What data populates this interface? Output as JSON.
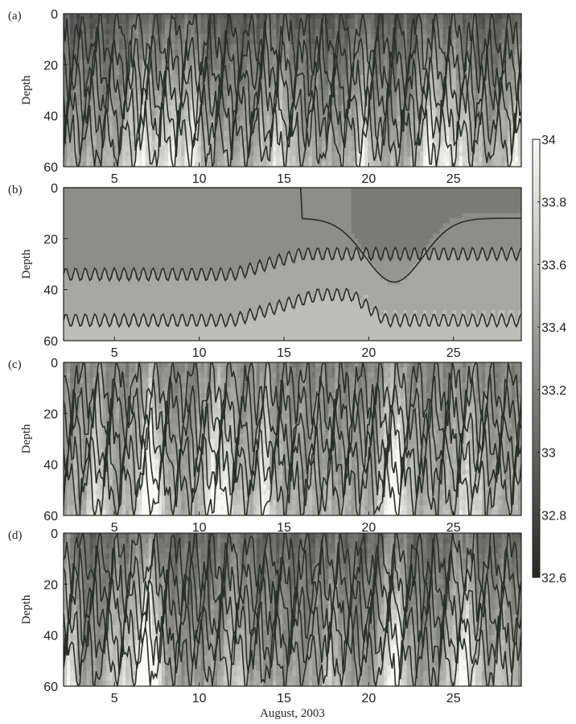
{
  "chart_data": {
    "type": "heatmap",
    "xlabel": "August, 2003",
    "ylabel": "Depth",
    "xlim": [
      2,
      29
    ],
    "ylim": [
      0,
      60
    ],
    "y_reversed": true,
    "xticks": [
      5,
      10,
      15,
      20,
      25
    ],
    "yticks": [
      0,
      20,
      40,
      60
    ],
    "grid": false,
    "colorbar": {
      "position": "right",
      "min": 32.6,
      "max": 34,
      "ticks": [
        "34",
        "33.8",
        "33.6",
        "33.4",
        "33.2",
        "33",
        "32.8",
        "32.6"
      ],
      "colormap": "gray"
    },
    "panels": [
      {
        "label": "(a)",
        "style": "noisy",
        "mean_surface": 32.9,
        "mean_bottom": 33.5
      },
      {
        "label": "(b)",
        "style": "smooth",
        "mean_surface": 33.3,
        "mean_bottom": 33.5
      },
      {
        "label": "(c)",
        "style": "noisy",
        "mean_surface": 33.2,
        "mean_bottom": 33.5
      },
      {
        "label": "(d)",
        "style": "noisy",
        "mean_surface": 33.0,
        "mean_bottom": 33.4
      }
    ]
  }
}
